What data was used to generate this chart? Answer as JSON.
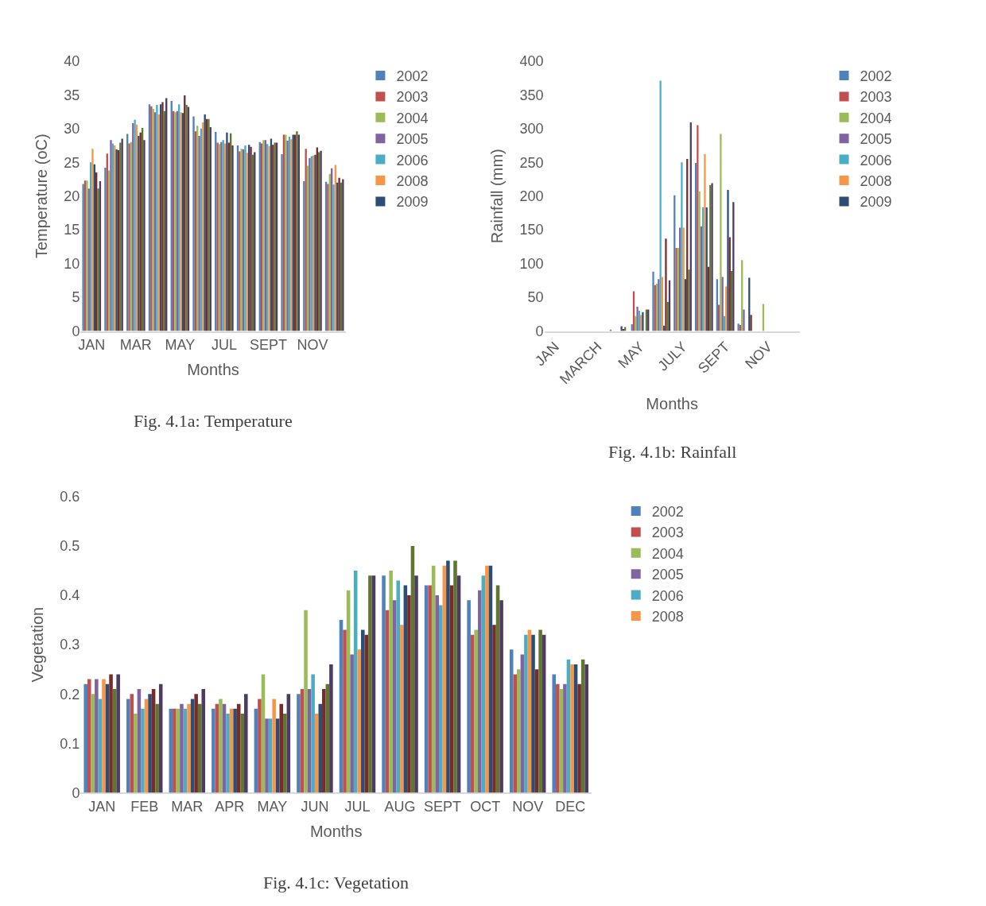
{
  "chart_data": [
    {
      "type": "bar",
      "title": "Fig. 4.1a: Temperature",
      "xlabel": "Months",
      "ylabel": "Temperature (oC)",
      "legend": "right",
      "ylim": [
        0,
        40
      ],
      "yticks": [
        0,
        5,
        10,
        15,
        20,
        25,
        30,
        35,
        40
      ],
      "categories": [
        "JAN",
        null,
        "MAR",
        null,
        "MAY",
        null,
        "JUL",
        null,
        "SEPT",
        null,
        "NOV",
        null
      ],
      "series": [
        {
          "name": "2002",
          "color": "#4f81bd",
          "values": [
            21.8,
            24.2,
            29.2,
            33.6,
            34.1,
            31.8,
            29.5,
            27.5,
            28.0,
            26.2,
            22.2,
            22.1
          ]
        },
        {
          "name": "2003",
          "color": "#c0504d",
          "values": [
            22.3,
            26.3,
            27.8,
            33.3,
            32.6,
            29.6,
            27.9,
            26.6,
            27.8,
            29.1,
            27.0,
            21.8
          ]
        },
        {
          "name": "2004",
          "color": "#9bbb59",
          "values": [
            22.3,
            23.8,
            28.0,
            32.9,
            32.4,
            30.4,
            27.7,
            27.0,
            28.3,
            29.1,
            24.5,
            23.3
          ]
        },
        {
          "name": "2005",
          "color": "#8064a2",
          "values": [
            21.1,
            28.3,
            30.8,
            32.4,
            32.6,
            28.9,
            28.0,
            26.9,
            28.3,
            28.2,
            25.6,
            24.1
          ]
        },
        {
          "name": "2006",
          "color": "#4bacc6",
          "values": [
            25.0,
            27.8,
            31.3,
            33.5,
            33.6,
            30.0,
            28.3,
            27.5,
            27.7,
            28.8,
            25.9,
            21.7
          ]
        },
        {
          "name": "2008",
          "color": "#f79646",
          "values": [
            27.0,
            27.5,
            30.6,
            32.1,
            32.4,
            30.9,
            27.8,
            26.4,
            27.4,
            28.4,
            26.0,
            24.6
          ]
        },
        {
          "name": "2009",
          "color": "#2c4d75",
          "values": [
            24.7,
            26.9,
            28.9,
            33.6,
            32.3,
            32.1,
            29.4,
            27.6,
            28.5,
            29.1,
            26.1,
            22.0
          ]
        },
        {
          "color": "#772c2a",
          "values": [
            23.5,
            26.8,
            29.4,
            33.9,
            34.9,
            31.4,
            27.9,
            27.3,
            27.6,
            29.1,
            27.2,
            22.7
          ]
        },
        {
          "color": "#5f7530",
          "values": [
            21.1,
            27.9,
            30.1,
            32.6,
            33.5,
            31.4,
            29.3,
            26.1,
            27.9,
            29.6,
            26.5,
            22.0
          ]
        },
        {
          "color": "#4d3b62",
          "values": [
            22.2,
            28.5,
            28.3,
            34.5,
            33.2,
            30.2,
            27.5,
            26.5,
            27.9,
            29.1,
            26.7,
            22.5
          ]
        }
      ]
    },
    {
      "type": "bar",
      "title": "Fig. 4.1b: Rainfall",
      "xlabel": "Months",
      "ylabel": "Rainfall (mm)",
      "legend": "right",
      "ylim": [
        0,
        400
      ],
      "yticks": [
        0,
        50,
        100,
        150,
        200,
        250,
        300,
        350,
        400
      ],
      "categories": [
        "JAN",
        null,
        "MARCH",
        null,
        "MAY",
        null,
        "JULY",
        null,
        "SEPT",
        null,
        "NOV",
        null
      ],
      "series": [
        {
          "name": "2002",
          "color": "#4f81bd",
          "values": [
            0,
            0,
            0,
            2,
            10,
            88,
            201,
            249,
            77,
            11,
            0,
            null
          ]
        },
        {
          "name": "2003",
          "color": "#c0504d",
          "values": [
            0,
            0,
            0,
            0,
            59,
            68,
            123,
            305,
            39,
            9,
            0,
            null
          ]
        },
        {
          "name": "2004",
          "color": "#9bbb59",
          "values": [
            0,
            0,
            0,
            0,
            22,
            70,
            123,
            207,
            292,
            105,
            40,
            null
          ]
        },
        {
          "name": "2005",
          "color": "#8064a2",
          "values": [
            0,
            0,
            0,
            0,
            36,
            77,
            153,
            155,
            80,
            32,
            0,
            null
          ]
        },
        {
          "name": "2006",
          "color": "#4bacc6",
          "values": [
            0,
            0,
            0,
            0,
            30,
            371,
            250,
            183,
            22,
            0,
            0,
            null
          ]
        },
        {
          "name": "2008",
          "color": "#f79646",
          "values": [
            0,
            0,
            0,
            0,
            24,
            80,
            153,
            262,
            66,
            0,
            0,
            null
          ]
        },
        {
          "name": "2009",
          "color": "#2c4d75",
          "values": [
            0,
            0,
            0,
            7,
            28,
            8,
            77,
            183,
            209,
            79,
            0,
            null
          ]
        },
        {
          "color": "#772c2a",
          "values": [
            0,
            0,
            0,
            3,
            0,
            137,
            255,
            95,
            139,
            24,
            0,
            null
          ]
        },
        {
          "color": "#5f7530",
          "values": [
            0,
            0,
            0,
            6,
            32,
            43,
            91,
            216,
            89,
            0,
            0,
            null
          ]
        },
        {
          "color": "#4d3b62",
          "values": [
            0,
            0,
            0,
            0,
            32,
            75,
            309,
            219,
            191,
            0,
            0,
            null
          ]
        }
      ]
    },
    {
      "type": "bar",
      "title": "Fig. 4.1c: Vegetation",
      "xlabel": "Months",
      "ylabel": "Vegetation",
      "legend": "right",
      "ylim": [
        0,
        0.6
      ],
      "yticks": [
        0,
        0.1,
        0.2,
        0.3,
        0.4,
        0.5,
        0.6
      ],
      "categories": [
        "JAN",
        "FEB",
        "MAR",
        "APR",
        "MAY",
        "JUN",
        "JUL",
        "AUG",
        "SEPT",
        "OCT",
        "NOV",
        "DEC"
      ],
      "series": [
        {
          "name": "2002",
          "color": "#4f81bd",
          "values": [
            0.22,
            0.19,
            0.17,
            0.17,
            0.17,
            0.2,
            0.35,
            0.44,
            0.42,
            0.39,
            0.29,
            0.24
          ]
        },
        {
          "name": "2003",
          "color": "#c0504d",
          "values": [
            0.23,
            0.2,
            0.17,
            0.18,
            0.19,
            0.21,
            0.33,
            0.37,
            0.42,
            0.32,
            0.24,
            0.22
          ]
        },
        {
          "name": "2004",
          "color": "#9bbb59",
          "values": [
            0.2,
            0.16,
            0.17,
            0.19,
            0.24,
            0.37,
            0.41,
            0.45,
            0.46,
            0.33,
            0.25,
            0.21
          ]
        },
        {
          "name": "2005",
          "color": "#8064a2",
          "values": [
            0.23,
            0.21,
            0.18,
            0.18,
            0.15,
            0.21,
            0.28,
            0.39,
            0.4,
            0.41,
            0.28,
            0.22
          ]
        },
        {
          "name": "2006",
          "color": "#4bacc6",
          "values": [
            0.19,
            0.17,
            0.17,
            0.16,
            0.15,
            0.24,
            0.45,
            0.43,
            0.38,
            0.44,
            0.32,
            0.27
          ]
        },
        {
          "name": "2008",
          "color": "#f79646",
          "values": [
            0.23,
            0.19,
            0.18,
            0.17,
            0.19,
            0.16,
            0.29,
            0.34,
            0.46,
            0.46,
            0.33,
            0.26
          ]
        },
        {
          "color": "#2c4d75",
          "values": [
            0.22,
            0.2,
            0.19,
            0.17,
            0.15,
            0.18,
            0.33,
            0.42,
            0.47,
            0.46,
            0.32,
            0.26
          ]
        },
        {
          "color": "#772c2a",
          "values": [
            0.24,
            0.21,
            0.2,
            0.18,
            0.18,
            0.21,
            0.32,
            0.4,
            0.42,
            0.34,
            0.25,
            0.22
          ]
        },
        {
          "color": "#5f7530",
          "values": [
            0.21,
            0.18,
            0.18,
            0.16,
            0.16,
            0.22,
            0.44,
            0.5,
            0.47,
            0.42,
            0.33,
            0.27
          ]
        },
        {
          "color": "#4d3b62",
          "values": [
            0.24,
            0.22,
            0.21,
            0.2,
            0.2,
            0.26,
            0.44,
            0.44,
            0.44,
            0.39,
            0.32,
            0.26
          ]
        }
      ]
    }
  ]
}
